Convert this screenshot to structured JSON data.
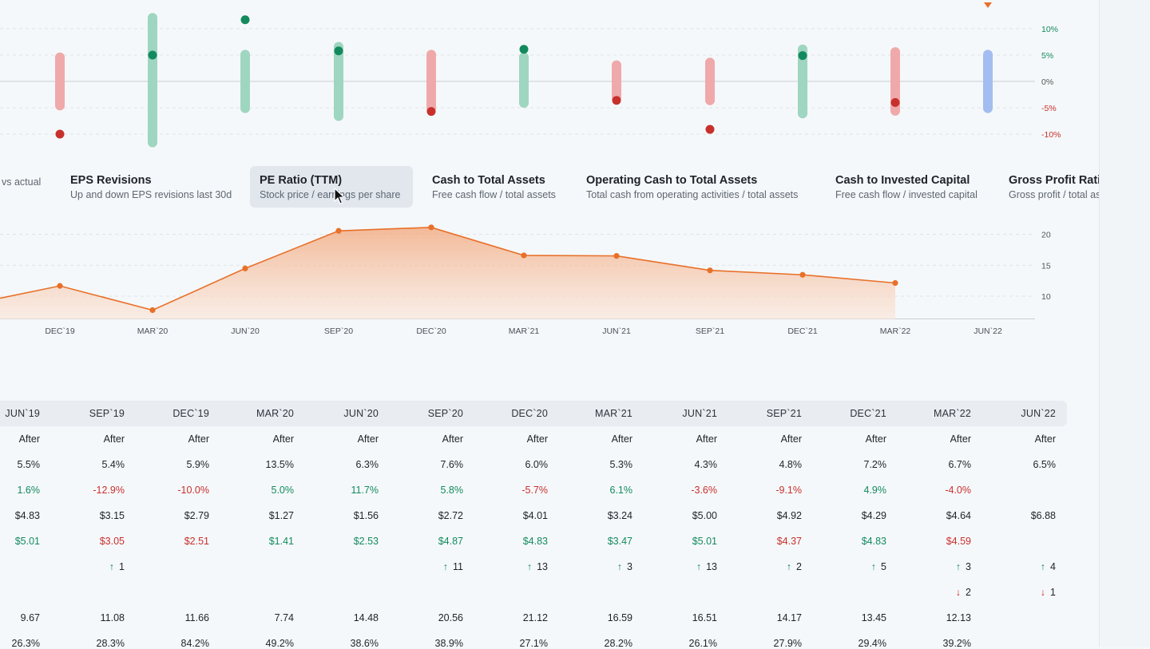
{
  "colors": {
    "positive": "#138a5e",
    "negative": "#c8302c",
    "pos_bar": "#9fd6c1",
    "neg_bar": "#efa9ab",
    "current_bar": "#a3bdf0",
    "accent_orange": "#e8702a"
  },
  "top_chart": {
    "ticks": [
      "10%",
      "5%",
      "0%",
      "-5%",
      "-10%"
    ]
  },
  "tabs": [
    {
      "title": "",
      "subtitle": "vs actual"
    },
    {
      "title": "EPS Revisions",
      "subtitle": "Up and down EPS revisions last 30d"
    },
    {
      "title": "PE Ratio (TTM)",
      "subtitle": "Stock price / earnings per share"
    },
    {
      "title": "Cash to Total Assets",
      "subtitle": "Free cash flow / total assets"
    },
    {
      "title": "Operating Cash to Total Assets",
      "subtitle": "Total cash from operating activities / total assets"
    },
    {
      "title": "Cash to Invested Capital",
      "subtitle": "Free cash flow / invested capital"
    },
    {
      "title": "Gross Profit Ratio",
      "subtitle": "Gross profit / total assets"
    }
  ],
  "pe_chart": {
    "y_ticks": [
      "20",
      "15",
      "10"
    ],
    "x_labels": [
      "DEC`19",
      "MAR`20",
      "JUN`20",
      "SEP`20",
      "DEC`20",
      "MAR`21",
      "JUN`21",
      "SEP`21",
      "DEC`21",
      "MAR`22",
      "JUN`22"
    ]
  },
  "chart_data": [
    {
      "type": "scatter",
      "categories": [
        "DEC`19",
        "MAR`20",
        "JUN`20",
        "SEP`20",
        "DEC`20",
        "MAR`21",
        "JUN`21",
        "SEP`21",
        "DEC`21",
        "MAR`22",
        "JUN`22"
      ],
      "ylim": [
        -12,
        14
      ],
      "y_ticks": [
        "10%",
        "5%",
        "0%",
        "-5%",
        "-10%"
      ],
      "ranges": [
        [
          -5.5,
          5.5
        ],
        [
          -12.5,
          13
        ],
        [
          -6,
          6
        ],
        [
          -7.5,
          7.5
        ],
        [
          -6,
          6
        ],
        [
          -5,
          5.5
        ],
        [
          -4,
          4
        ],
        [
          -4.5,
          4.5
        ],
        [
          -7,
          7
        ],
        [
          -6.5,
          6.5
        ],
        [
          -6,
          6
        ]
      ],
      "actuals": [
        -10,
        5,
        11.7,
        5.8,
        -5.7,
        6.1,
        -3.6,
        -9.1,
        4.9,
        -4.0,
        null
      ]
    },
    {
      "type": "area",
      "ylabel": "",
      "categories": [
        "",
        "DEC`19",
        "MAR`20",
        "JUN`20",
        "SEP`20",
        "DEC`20",
        "MAR`21",
        "JUN`21",
        "SEP`21",
        "DEC`21",
        "MAR`22",
        "JUN`22"
      ],
      "values": [
        9.67,
        11.66,
        7.74,
        14.48,
        20.56,
        21.12,
        16.59,
        16.51,
        14.17,
        13.45,
        12.13,
        null
      ],
      "ylim": [
        6.5,
        21.5
      ],
      "y_ticks": [
        20,
        15,
        10
      ]
    }
  ],
  "table": {
    "headers": [
      "JUN`19",
      "SEP`19",
      "DEC`19",
      "MAR`20",
      "JUN`20",
      "SEP`20",
      "DEC`20",
      "MAR`21",
      "JUN`21",
      "SEP`21",
      "DEC`21",
      "MAR`22",
      "JUN`22"
    ],
    "rows": [
      [
        {
          "v": "After"
        },
        {
          "v": "After"
        },
        {
          "v": "After"
        },
        {
          "v": "After"
        },
        {
          "v": "After"
        },
        {
          "v": "After"
        },
        {
          "v": "After"
        },
        {
          "v": "After"
        },
        {
          "v": "After"
        },
        {
          "v": "After"
        },
        {
          "v": "After"
        },
        {
          "v": "After"
        },
        {
          "v": "After"
        }
      ],
      [
        {
          "v": "5.5%"
        },
        {
          "v": "5.4%"
        },
        {
          "v": "5.9%"
        },
        {
          "v": "13.5%"
        },
        {
          "v": "6.3%"
        },
        {
          "v": "7.6%"
        },
        {
          "v": "6.0%"
        },
        {
          "v": "5.3%"
        },
        {
          "v": "4.3%"
        },
        {
          "v": "4.8%"
        },
        {
          "v": "7.2%"
        },
        {
          "v": "6.7%"
        },
        {
          "v": "6.5%"
        }
      ],
      [
        {
          "v": "1.6%",
          "c": "pos"
        },
        {
          "v": "-12.9%",
          "c": "neg"
        },
        {
          "v": "-10.0%",
          "c": "neg"
        },
        {
          "v": "5.0%",
          "c": "pos"
        },
        {
          "v": "11.7%",
          "c": "pos"
        },
        {
          "v": "5.8%",
          "c": "pos"
        },
        {
          "v": "-5.7%",
          "c": "neg"
        },
        {
          "v": "6.1%",
          "c": "pos"
        },
        {
          "v": "-3.6%",
          "c": "neg"
        },
        {
          "v": "-9.1%",
          "c": "neg"
        },
        {
          "v": "4.9%",
          "c": "pos"
        },
        {
          "v": "-4.0%",
          "c": "neg"
        },
        {
          "v": ""
        }
      ],
      [
        {
          "v": "$4.83"
        },
        {
          "v": "$3.15"
        },
        {
          "v": "$2.79"
        },
        {
          "v": "$1.27"
        },
        {
          "v": "$1.56"
        },
        {
          "v": "$2.72"
        },
        {
          "v": "$4.01"
        },
        {
          "v": "$3.24"
        },
        {
          "v": "$5.00"
        },
        {
          "v": "$4.92"
        },
        {
          "v": "$4.29"
        },
        {
          "v": "$4.64"
        },
        {
          "v": "$6.88"
        }
      ],
      [
        {
          "v": "$5.01",
          "c": "pos"
        },
        {
          "v": "$3.05",
          "c": "neg"
        },
        {
          "v": "$2.51",
          "c": "neg"
        },
        {
          "v": "$1.41",
          "c": "pos"
        },
        {
          "v": "$2.53",
          "c": "pos"
        },
        {
          "v": "$4.87",
          "c": "pos"
        },
        {
          "v": "$4.83",
          "c": "pos"
        },
        {
          "v": "$3.47",
          "c": "pos"
        },
        {
          "v": "$5.01",
          "c": "pos"
        },
        {
          "v": "$4.37",
          "c": "neg"
        },
        {
          "v": "$4.83",
          "c": "pos"
        },
        {
          "v": "$4.59",
          "c": "neg"
        },
        {
          "v": ""
        }
      ],
      [
        {
          "v": ""
        },
        {
          "v": "1",
          "arrow": "up"
        },
        {
          "v": ""
        },
        {
          "v": ""
        },
        {
          "v": ""
        },
        {
          "v": "11",
          "arrow": "up"
        },
        {
          "v": "13",
          "arrow": "up"
        },
        {
          "v": "3",
          "arrow": "up"
        },
        {
          "v": "13",
          "arrow": "up"
        },
        {
          "v": "2",
          "arrow": "up"
        },
        {
          "v": "5",
          "arrow": "up"
        },
        {
          "v": "3",
          "arrow": "up"
        },
        {
          "v": "4",
          "arrow": "up"
        }
      ],
      [
        {
          "v": ""
        },
        {
          "v": ""
        },
        {
          "v": ""
        },
        {
          "v": ""
        },
        {
          "v": ""
        },
        {
          "v": ""
        },
        {
          "v": ""
        },
        {
          "v": ""
        },
        {
          "v": ""
        },
        {
          "v": ""
        },
        {
          "v": ""
        },
        {
          "v": "2",
          "arrow": "down"
        },
        {
          "v": "1",
          "arrow": "down"
        }
      ],
      [
        {
          "v": "9.67"
        },
        {
          "v": "11.08"
        },
        {
          "v": "11.66"
        },
        {
          "v": "7.74"
        },
        {
          "v": "14.48"
        },
        {
          "v": "20.56"
        },
        {
          "v": "21.12"
        },
        {
          "v": "16.59"
        },
        {
          "v": "16.51"
        },
        {
          "v": "14.17"
        },
        {
          "v": "13.45"
        },
        {
          "v": "12.13"
        },
        {
          "v": ""
        }
      ],
      [
        {
          "v": "26.3%"
        },
        {
          "v": "28.3%"
        },
        {
          "v": "84.2%"
        },
        {
          "v": "49.2%"
        },
        {
          "v": "38.6%"
        },
        {
          "v": "38.9%"
        },
        {
          "v": "27.1%"
        },
        {
          "v": "28.2%"
        },
        {
          "v": "26.1%"
        },
        {
          "v": "27.9%"
        },
        {
          "v": "29.4%"
        },
        {
          "v": "39.2%"
        },
        {
          "v": ""
        }
      ]
    ]
  }
}
